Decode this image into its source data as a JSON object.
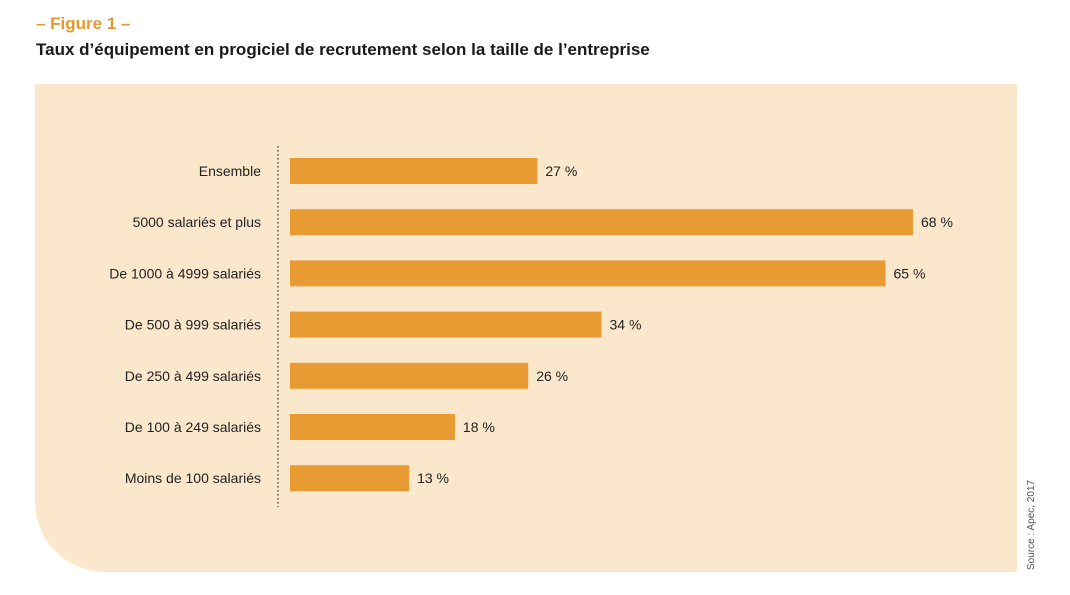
{
  "header": {
    "figure_label": "– Figure 1 –",
    "title": "Taux d’équipement en progiciel de recrutement selon la taille de l’entreprise"
  },
  "source": "Source : Apec, 2017",
  "colors": {
    "accent": "#e8972f",
    "bar": "#e89a33",
    "panel_background": "#fbe8cc",
    "title_text": "#1a1a1a",
    "label_text": "#222222"
  },
  "chart_data": {
    "type": "bar",
    "orientation": "horizontal",
    "title": "Taux d’équipement en progiciel de recrutement selon la taille de l’entreprise",
    "xlabel": "",
    "ylabel": "",
    "categories": [
      "Ensemble",
      "5000 salariés et plus",
      "De 1000 à 4999 salariés",
      "De 500 à 999 salariés",
      "De 250 à 499 salariés",
      "De 100 à 249 salariés",
      "Moins de 100 salariés"
    ],
    "values": [
      27,
      68,
      65,
      34,
      26,
      18,
      13
    ],
    "value_labels": [
      "27 %",
      "68 %",
      "65 %",
      "34 %",
      "26 %",
      "18 %",
      "13 %"
    ],
    "value_unit": "%",
    "xlim": [
      0,
      68
    ],
    "grid": false,
    "legend": "none"
  }
}
